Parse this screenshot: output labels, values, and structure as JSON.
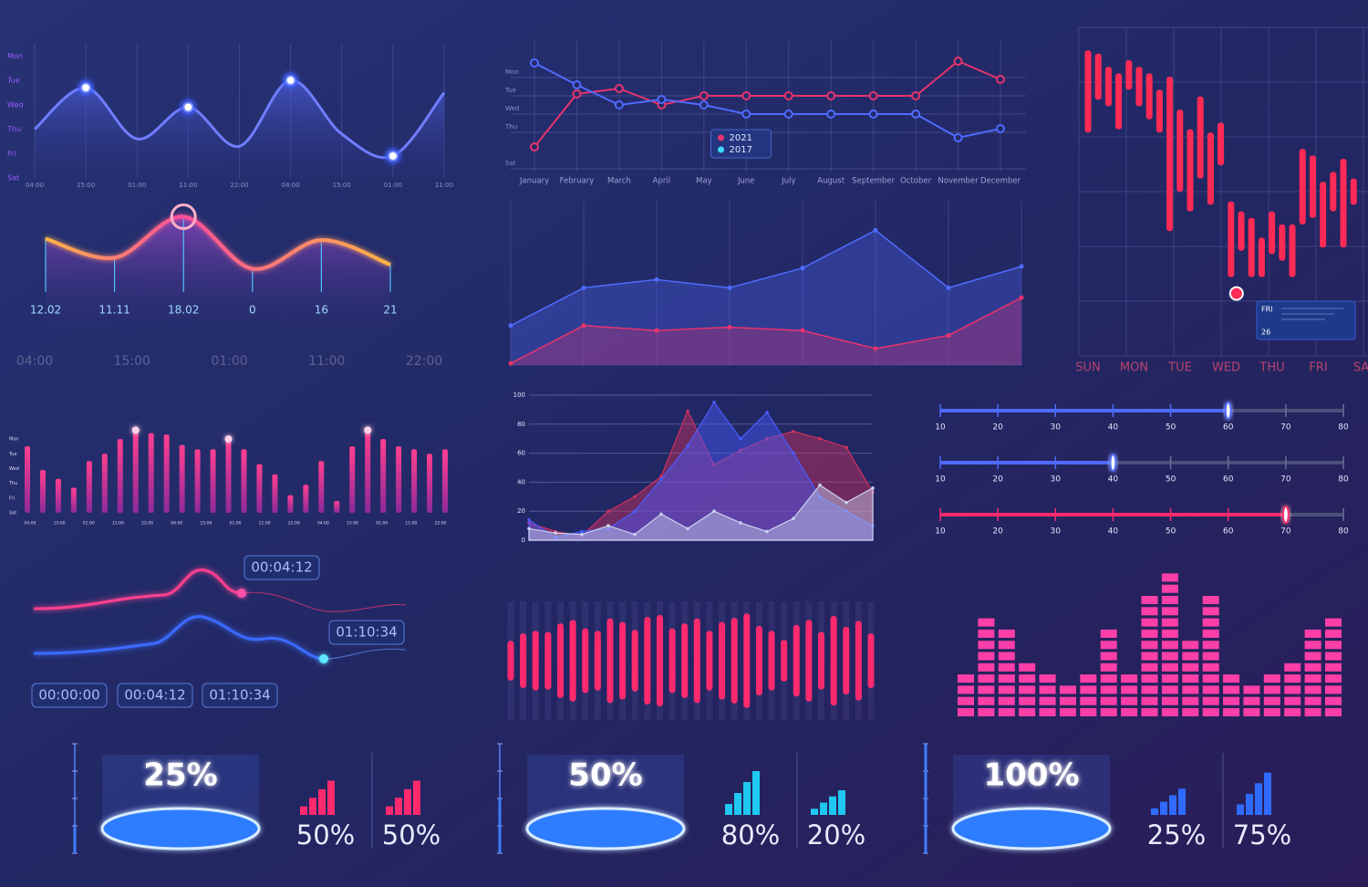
{
  "chart_data": [
    {
      "type": "area",
      "smooth": true,
      "color": "#6f7dff",
      "categories": [
        "04:00",
        "15:00",
        "01:00",
        "11:00",
        "22:00",
        "04:00",
        "15:00",
        "01:00",
        "11:00"
      ],
      "values": [
        2.0,
        3.7,
        1.6,
        2.9,
        1.3,
        4.0,
        1.8,
        0.9,
        3.5
      ],
      "ylim": [
        0,
        5.5
      ],
      "yticks": [
        {
          "value": 5,
          "label": "Mon"
        },
        {
          "value": 4,
          "label": "Tue"
        },
        {
          "value": 3,
          "label": "Wed"
        },
        {
          "value": 2,
          "label": "Thu"
        },
        {
          "value": 1,
          "label": "Fri"
        },
        {
          "value": 0,
          "label": "Sat"
        }
      ],
      "highlights": [
        1,
        3,
        5,
        7
      ]
    },
    {
      "type": "glow-line",
      "values": [
        3.9,
        2.5,
        5.5,
        1.7,
        3.8,
        2.0
      ],
      "ylim": [
        0,
        6
      ],
      "annotations": [
        "12.02",
        "11.11",
        "18.02",
        "0",
        "16",
        "21"
      ],
      "x_labels": [
        "04:00",
        "15:00",
        "01:00",
        "11:00",
        "22:00"
      ]
    },
    {
      "type": "line",
      "categories": [
        "January",
        "February",
        "March",
        "April",
        "May",
        "June",
        "July",
        "August",
        "September",
        "October",
        "November",
        "December"
      ],
      "series": [
        {
          "name": "2021",
          "color": "#e8336e",
          "values": [
            1.2,
            4.1,
            4.4,
            3.5,
            4.0,
            4.0,
            4.0,
            4.0,
            4.0,
            4.0,
            5.9,
            4.9
          ]
        },
        {
          "name": "2017",
          "color": "#4f6bff",
          "values": [
            5.8,
            4.6,
            3.5,
            3.8,
            3.5,
            3.0,
            3.0,
            3.0,
            3.0,
            3.0,
            1.7,
            2.2
          ]
        }
      ],
      "ylim": [
        0,
        6
      ],
      "yticks": [
        {
          "value": 5,
          "label": "Mon"
        },
        {
          "value": 4,
          "label": "Tue"
        },
        {
          "value": 3,
          "label": "Wed"
        },
        {
          "value": 2,
          "label": "Thu"
        },
        {
          "value": 0,
          "label": "Sat"
        }
      ],
      "legend": "center"
    },
    {
      "type": "area",
      "smooth": false,
      "ylim": [
        0,
        10
      ],
      "series": [
        {
          "color": "#4f6bff",
          "values": [
            2.4,
            4.7,
            5.2,
            4.7,
            5.9,
            8.2,
            4.7,
            6.0
          ]
        },
        {
          "color": "#e8336e",
          "values": [
            0.1,
            2.4,
            2.1,
            2.3,
            2.1,
            1.0,
            1.8,
            4.1
          ]
        }
      ]
    },
    {
      "type": "range-bar",
      "color": "#ff2a55",
      "ylim": [
        0,
        100
      ],
      "highs": [
        93,
        92,
        88,
        86,
        90,
        88,
        86,
        81,
        85,
        75,
        69,
        79,
        68,
        71,
        47,
        44,
        42,
        36,
        44,
        40,
        40,
        63,
        61,
        53,
        56,
        60,
        54
      ],
      "lows": [
        68,
        78,
        76,
        69,
        81,
        76,
        72,
        68,
        38,
        50,
        44,
        54,
        46,
        58,
        24,
        32,
        24,
        24,
        31,
        29,
        24,
        40,
        42,
        33,
        44,
        33,
        46
      ],
      "marker": 19,
      "tooltip": {
        "day": "FRI",
        "date": "26"
      },
      "x_labels": [
        "SUN",
        "MON",
        "TUE",
        "WED",
        "THU",
        "FRI",
        "SAT"
      ]
    },
    {
      "type": "mountain",
      "x": [
        0,
        1,
        2,
        3,
        4,
        5,
        6,
        7,
        8,
        9,
        10,
        11,
        12,
        13
      ],
      "xlim": [
        0,
        13
      ],
      "ylim": [
        0,
        100
      ],
      "yticks": [
        0,
        20,
        40,
        60,
        80,
        100
      ],
      "series": [
        {
          "color": "#d0305e",
          "values": [
            12,
            6,
            3,
            20,
            30,
            44,
            89,
            52,
            62,
            70,
            75,
            70,
            64,
            33
          ]
        },
        {
          "color": "#4a5cff",
          "values": [
            14,
            2,
            6,
            8,
            20,
            42,
            65,
            95,
            70,
            88,
            60,
            30,
            20,
            10
          ]
        },
        {
          "color": "#c9d2f0",
          "values": [
            8,
            5,
            4,
            10,
            4,
            18,
            8,
            20,
            12,
            6,
            15,
            38,
            26,
            36
          ]
        }
      ]
    },
    {
      "type": "slider",
      "xlim": [
        10,
        80
      ],
      "xticks": [
        10,
        20,
        30,
        40,
        50,
        60,
        70,
        80
      ],
      "sliders": [
        {
          "value": 60,
          "color": "#4f6bff"
        },
        {
          "value": 40,
          "color": "#4f6bff"
        },
        {
          "value": 70,
          "color": "#ff2a6e"
        }
      ]
    },
    {
      "type": "bar",
      "values": [
        4.5,
        2.9,
        2.3,
        1.7,
        3.5,
        4.0,
        5.0,
        5.6,
        5.4,
        5.3,
        4.6,
        4.3,
        4.3,
        5.0,
        4.3,
        3.3,
        2.6,
        1.2,
        1.9,
        3.5,
        0.8,
        4.5,
        5.6,
        5.0,
        4.5,
        4.3,
        4.0,
        4.3
      ],
      "ylim": [
        0,
        5.5
      ],
      "yticks": [
        {
          "value": 5,
          "label": "Mon"
        },
        {
          "value": 4,
          "label": "Tue"
        },
        {
          "value": 3,
          "label": "Wed"
        },
        {
          "value": 2,
          "label": "Thu"
        },
        {
          "value": 1,
          "label": "Fri"
        },
        {
          "value": 0,
          "label": "Sat"
        }
      ],
      "x_labels": [
        "04:00",
        "15:00",
        "01:00",
        "11:00",
        "22:00",
        "04:00",
        "15:00",
        "01:00",
        "11:00",
        "22:00",
        "04:00",
        "15:00",
        "01:00",
        "11:00",
        "22:00"
      ],
      "highlights": [
        7,
        13,
        22
      ]
    },
    {
      "type": "wave",
      "color": "#ff2a6e",
      "ylim": [
        0,
        110
      ],
      "values": [
        40,
        55,
        60,
        58,
        75,
        82,
        65,
        60,
        85,
        78,
        62,
        88,
        92,
        65,
        75,
        85,
        60,
        78,
        86,
        95,
        70,
        60,
        42,
        72,
        82,
        58,
        90,
        68,
        80,
        55
      ]
    },
    {
      "type": "equalizer",
      "color": "#ff3fa8",
      "values": [
        4,
        9,
        8,
        5,
        4,
        3,
        4,
        8,
        4,
        11,
        13,
        7,
        11,
        4,
        3,
        4,
        5,
        8,
        9
      ]
    },
    {
      "type": "gauge",
      "ylim": [
        0,
        100
      ],
      "values": [
        25
      ],
      "value_labels": [
        "25%"
      ],
      "color": "#ff2a6e",
      "sub_values": [
        50,
        50
      ],
      "sub_labels": [
        "50%",
        "50%"
      ]
    },
    {
      "type": "gauge",
      "ylim": [
        0,
        100
      ],
      "values": [
        50
      ],
      "value_labels": [
        "50%"
      ],
      "color": "#1fc8f0",
      "sub_values": [
        80,
        20
      ],
      "sub_labels": [
        "80%",
        "20%"
      ]
    },
    {
      "type": "gauge",
      "ylim": [
        0,
        100
      ],
      "values": [
        100
      ],
      "value_labels": [
        "100%"
      ],
      "color": "#2f6bff",
      "sub_values": [
        25,
        75
      ],
      "sub_labels": [
        "25%",
        "75%"
      ]
    }
  ],
  "timeline": {
    "markers": [
      "00:04:12",
      "01:10:34"
    ],
    "buttons": [
      "00:00:00",
      "00:04:12",
      "01:10:34"
    ]
  }
}
